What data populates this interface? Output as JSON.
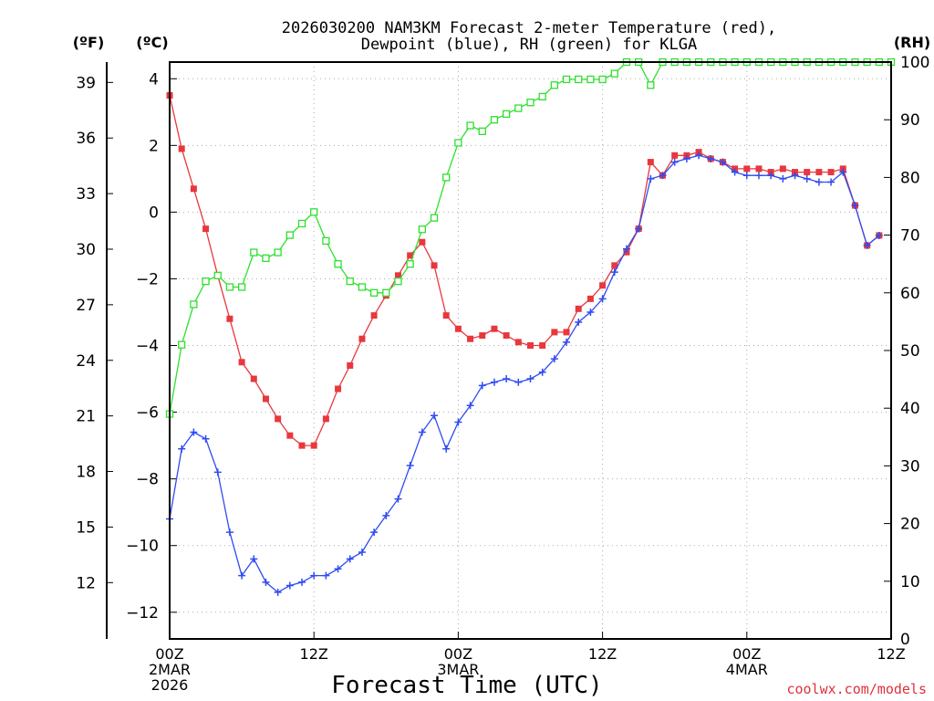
{
  "chart_data": {
    "type": "line",
    "title_lines": [
      "2026030200 NAM3KM Forecast 2-meter Temperature (red),",
      "Dewpoint (blue), RH (green) for KLGA"
    ],
    "xlabel": "Forecast Time (UTC)",
    "watermark": "coolwx.com/models",
    "units": {
      "fahrenheit": "(ºF)",
      "celsius": "(ºC)",
      "rh": "(RH)"
    },
    "x_range_hours": [
      0,
      60
    ],
    "x_ticks": [
      {
        "h": 0,
        "lines": [
          "00Z",
          "2MAR",
          "2026"
        ]
      },
      {
        "h": 12,
        "lines": [
          "12Z"
        ]
      },
      {
        "h": 24,
        "lines": [
          "00Z",
          "3MAR"
        ]
      },
      {
        "h": 36,
        "lines": [
          "12Z"
        ]
      },
      {
        "h": 48,
        "lines": [
          "00Z",
          "4MAR"
        ]
      },
      {
        "h": 60,
        "lines": [
          "12Z"
        ]
      }
    ],
    "celsius_axis": {
      "range": [
        -12.8,
        4.5
      ],
      "ticks": [
        -12,
        -10,
        -8,
        -6,
        -4,
        -2,
        0,
        2,
        4
      ]
    },
    "fahrenheit_ticks": [
      12,
      15,
      18,
      21,
      24,
      27,
      30,
      33,
      36,
      39
    ],
    "rh_axis": {
      "range": [
        0,
        100
      ],
      "ticks": [
        0,
        10,
        20,
        30,
        40,
        50,
        60,
        70,
        80,
        90,
        100
      ]
    },
    "hours": [
      0,
      1,
      2,
      3,
      4,
      5,
      6,
      7,
      8,
      9,
      10,
      11,
      12,
      13,
      14,
      15,
      16,
      17,
      18,
      19,
      20,
      21,
      22,
      23,
      24,
      25,
      26,
      27,
      28,
      29,
      30,
      31,
      32,
      33,
      34,
      35,
      36,
      37,
      38,
      39,
      40,
      41,
      42,
      43,
      44,
      45,
      46,
      47,
      48,
      49,
      50,
      51,
      52,
      53,
      54,
      55,
      56,
      57,
      58,
      59,
      60
    ],
    "series": [
      {
        "name": "Temperature",
        "unit": "C",
        "color": "#e8373d",
        "marker": "filled-square",
        "values": [
          3.5,
          1.9,
          0.7,
          -0.5,
          -1.9,
          -3.2,
          -4.5,
          -5.0,
          -5.6,
          -6.2,
          -6.7,
          -7.0,
          -7.0,
          -6.2,
          -5.3,
          -4.6,
          -3.8,
          -3.1,
          -2.5,
          -1.9,
          -1.3,
          -0.9,
          -1.6,
          -3.1,
          -3.5,
          -3.8,
          -3.7,
          -3.5,
          -3.7,
          -3.9,
          -4.0,
          -4.0,
          -3.6,
          -3.6,
          -2.9,
          -2.6,
          -2.2,
          -1.6,
          -1.2,
          -0.5,
          1.5,
          1.1,
          1.7,
          1.7,
          1.8,
          1.6,
          1.5,
          1.3,
          1.3,
          1.3,
          1.2,
          1.3,
          1.2,
          1.2,
          1.2,
          1.2,
          1.3,
          0.2,
          -1.0,
          -0.7
        ]
      },
      {
        "name": "Dewpoint",
        "unit": "C",
        "color": "#2f4bf0",
        "marker": "plus",
        "values": [
          -9.2,
          -7.1,
          -6.6,
          -6.8,
          -7.8,
          -9.6,
          -10.9,
          -10.4,
          -11.1,
          -11.4,
          -11.2,
          -11.1,
          -10.9,
          -10.9,
          -10.7,
          -10.4,
          -10.2,
          -9.6,
          -9.1,
          -8.6,
          -7.6,
          -6.6,
          -6.1,
          -7.1,
          -6.3,
          -5.8,
          -5.2,
          -5.1,
          -5.0,
          -5.1,
          -5.0,
          -4.8,
          -4.4,
          -3.9,
          -3.3,
          -3.0,
          -2.6,
          -1.8,
          -1.1,
          -0.5,
          1.0,
          1.1,
          1.5,
          1.6,
          1.7,
          1.6,
          1.5,
          1.2,
          1.1,
          1.1,
          1.1,
          1.0,
          1.1,
          1.0,
          0.9,
          0.9,
          1.2,
          0.2,
          -1.0,
          -0.7
        ]
      },
      {
        "name": "Relative Humidity",
        "unit": "%",
        "color": "#2ee02e",
        "marker": "open-square",
        "values": [
          39,
          51,
          58,
          62,
          63,
          61,
          61,
          67,
          66,
          67,
          70,
          72,
          74,
          69,
          65,
          62,
          61,
          60,
          60,
          62,
          65,
          71,
          73,
          80,
          86,
          89,
          88,
          90,
          91,
          92,
          93,
          94,
          96,
          97,
          97,
          97,
          97,
          98,
          100,
          100,
          96,
          100,
          100,
          100,
          100,
          100,
          100,
          100,
          100,
          100,
          100,
          100,
          100,
          100,
          100,
          100,
          100,
          100,
          100,
          100,
          100
        ]
      }
    ]
  }
}
